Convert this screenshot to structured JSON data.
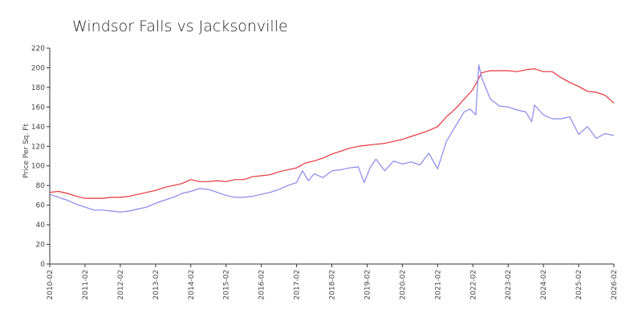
{
  "chart_data": {
    "type": "line",
    "title": "Windsor Falls vs Jacksonville",
    "xlabel": "",
    "ylabel": "Price Per Sq. Ft",
    "ylim": [
      0,
      220
    ],
    "yticks": [
      0,
      20,
      40,
      60,
      80,
      100,
      120,
      140,
      160,
      180,
      200,
      220
    ],
    "xlim": [
      "2010-02",
      "2026-02"
    ],
    "xticks": [
      "2010-02",
      "2011-02",
      "2012-02",
      "2013-02",
      "2014-02",
      "2015-02",
      "2016-02",
      "2017-02",
      "2018-02",
      "2019-02",
      "2020-02",
      "2021-02",
      "2022-02",
      "2023-02",
      "2024-02",
      "2025-02",
      "2026-02"
    ],
    "grid": false,
    "legend": "none",
    "series": [
      {
        "color": "#e8323a",
        "points": [
          [
            "2010-02",
            73
          ],
          [
            "2010-05",
            74
          ],
          [
            "2010-08",
            72
          ],
          [
            "2010-11",
            69
          ],
          [
            "2011-02",
            67
          ],
          [
            "2011-05",
            67
          ],
          [
            "2011-08",
            67
          ],
          [
            "2011-11",
            68
          ],
          [
            "2012-02",
            68
          ],
          [
            "2012-05",
            69
          ],
          [
            "2012-08",
            71
          ],
          [
            "2012-11",
            73
          ],
          [
            "2013-02",
            75
          ],
          [
            "2013-05",
            78
          ],
          [
            "2013-08",
            80
          ],
          [
            "2013-11",
            82
          ],
          [
            "2014-02",
            86
          ],
          [
            "2014-05",
            84
          ],
          [
            "2014-08",
            84
          ],
          [
            "2014-11",
            85
          ],
          [
            "2015-02",
            84
          ],
          [
            "2015-05",
            86
          ],
          [
            "2015-08",
            86
          ],
          [
            "2015-11",
            89
          ],
          [
            "2016-02",
            90
          ],
          [
            "2016-05",
            91
          ],
          [
            "2016-08",
            94
          ],
          [
            "2016-11",
            96
          ],
          [
            "2017-02",
            98
          ],
          [
            "2017-05",
            103
          ],
          [
            "2017-08",
            105
          ],
          [
            "2017-11",
            108
          ],
          [
            "2018-02",
            112
          ],
          [
            "2018-05",
            115
          ],
          [
            "2018-08",
            118
          ],
          [
            "2018-11",
            120
          ],
          [
            "2019-02",
            121
          ],
          [
            "2019-05",
            122
          ],
          [
            "2019-08",
            123
          ],
          [
            "2019-11",
            125
          ],
          [
            "2020-02",
            127
          ],
          [
            "2020-05",
            130
          ],
          [
            "2020-08",
            133
          ],
          [
            "2020-11",
            136
          ],
          [
            "2021-02",
            140
          ],
          [
            "2021-05",
            150
          ],
          [
            "2021-08",
            158
          ],
          [
            "2021-11",
            168
          ],
          [
            "2022-02",
            178
          ],
          [
            "2022-05",
            195
          ],
          [
            "2022-08",
            197
          ],
          [
            "2022-11",
            197
          ],
          [
            "2023-02",
            197
          ],
          [
            "2023-05",
            196
          ],
          [
            "2023-08",
            198
          ],
          [
            "2023-11",
            199
          ],
          [
            "2024-02",
            196
          ],
          [
            "2024-05",
            196
          ],
          [
            "2024-08",
            190
          ],
          [
            "2024-11",
            185
          ],
          [
            "2025-02",
            181
          ],
          [
            "2025-05",
            176
          ],
          [
            "2025-08",
            175
          ],
          [
            "2025-11",
            172
          ],
          [
            "2026-02",
            164
          ]
        ]
      },
      {
        "color": "#8a86ec",
        "points": [
          [
            "2010-02",
            71
          ],
          [
            "2010-05",
            68
          ],
          [
            "2010-08",
            65
          ],
          [
            "2010-11",
            61
          ],
          [
            "2011-02",
            58
          ],
          [
            "2011-05",
            55
          ],
          [
            "2011-08",
            55
          ],
          [
            "2011-11",
            54
          ],
          [
            "2012-02",
            53
          ],
          [
            "2012-05",
            54
          ],
          [
            "2012-08",
            56
          ],
          [
            "2012-11",
            58
          ],
          [
            "2013-02",
            62
          ],
          [
            "2013-05",
            65
          ],
          [
            "2013-08",
            68
          ],
          [
            "2013-11",
            72
          ],
          [
            "2014-02",
            74
          ],
          [
            "2014-05",
            77
          ],
          [
            "2014-08",
            76
          ],
          [
            "2014-11",
            73
          ],
          [
            "2015-02",
            70
          ],
          [
            "2015-05",
            68
          ],
          [
            "2015-08",
            68
          ],
          [
            "2015-11",
            69
          ],
          [
            "2016-02",
            71
          ],
          [
            "2016-05",
            73
          ],
          [
            "2016-08",
            76
          ],
          [
            "2016-11",
            80
          ],
          [
            "2017-02",
            83
          ],
          [
            "2017-04",
            95
          ],
          [
            "2017-06",
            85
          ],
          [
            "2017-08",
            92
          ],
          [
            "2017-11",
            88
          ],
          [
            "2018-02",
            95
          ],
          [
            "2018-05",
            96
          ],
          [
            "2018-08",
            98
          ],
          [
            "2018-11",
            99
          ],
          [
            "2019-01",
            83
          ],
          [
            "2019-03",
            98
          ],
          [
            "2019-05",
            107
          ],
          [
            "2019-08",
            95
          ],
          [
            "2019-11",
            105
          ],
          [
            "2020-02",
            102
          ],
          [
            "2020-05",
            104
          ],
          [
            "2020-08",
            101
          ],
          [
            "2020-11",
            113
          ],
          [
            "2021-02",
            97
          ],
          [
            "2021-05",
            125
          ],
          [
            "2021-08",
            140
          ],
          [
            "2021-11",
            155
          ],
          [
            "2022-01",
            158
          ],
          [
            "2022-03",
            152
          ],
          [
            "2022-04",
            203
          ],
          [
            "2022-05",
            190
          ],
          [
            "2022-08",
            168
          ],
          [
            "2022-11",
            161
          ],
          [
            "2023-02",
            160
          ],
          [
            "2023-05",
            157
          ],
          [
            "2023-08",
            155
          ],
          [
            "2023-10",
            145
          ],
          [
            "2023-11",
            162
          ],
          [
            "2024-02",
            152
          ],
          [
            "2024-05",
            148
          ],
          [
            "2024-08",
            148
          ],
          [
            "2024-11",
            150
          ],
          [
            "2025-02",
            132
          ],
          [
            "2025-05",
            140
          ],
          [
            "2025-08",
            128
          ],
          [
            "2025-11",
            133
          ],
          [
            "2026-02",
            131
          ]
        ]
      }
    ]
  }
}
